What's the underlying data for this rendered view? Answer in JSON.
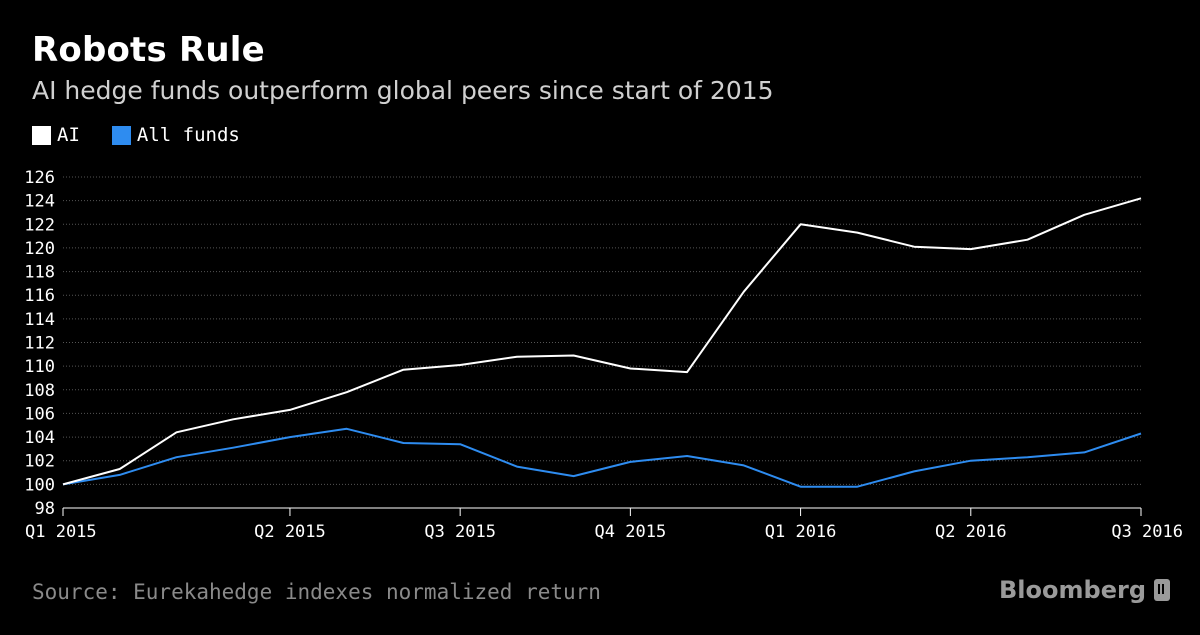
{
  "header": {
    "title": "Robots Rule",
    "subtitle": "AI hedge funds outperform global peers since start of 2015"
  },
  "footer": {
    "source": "Source: Eurekahedge indexes normalized return",
    "brand": "Bloomberg"
  },
  "chart_data": {
    "type": "line",
    "title": "Robots Rule",
    "subtitle": "AI hedge funds outperform global peers since start of 2015",
    "xlabel": "",
    "ylabel": "",
    "ylim": [
      98,
      126
    ],
    "yticks": [
      98,
      100,
      102,
      104,
      106,
      108,
      110,
      112,
      114,
      116,
      118,
      120,
      122,
      124,
      126
    ],
    "grid": true,
    "legend_position": "top-left",
    "x_tick_labels": [
      "Q1 2015",
      "Q2 2015",
      "Q3 2015",
      "Q4 2015",
      "Q1 2016",
      "Q2 2016",
      "Q3 2016"
    ],
    "x_tick_index": [
      0,
      4,
      7,
      10,
      13,
      16,
      19
    ],
    "x": [
      "2015-01",
      "2015-02",
      "2015-03",
      "2015-04",
      "2015-05",
      "2015-06",
      "2015-07",
      "2015-08",
      "2015-09",
      "2015-10",
      "2015-11",
      "2015-12",
      "2016-01",
      "2016-02",
      "2016-03",
      "2016-04",
      "2016-05",
      "2016-06",
      "2016-07",
      "2016-08"
    ],
    "series": [
      {
        "name": "AI",
        "color": "#ffffff",
        "values": [
          100.0,
          101.3,
          104.4,
          105.5,
          106.3,
          107.8,
          109.7,
          110.1,
          110.8,
          110.9,
          109.8,
          109.5,
          116.3,
          122.0,
          121.3,
          120.1,
          119.9,
          120.7,
          122.8,
          124.2
        ]
      },
      {
        "name": "All funds",
        "color": "#2e8cf0",
        "values": [
          100.0,
          100.8,
          102.3,
          103.1,
          104.0,
          104.7,
          103.5,
          103.4,
          101.5,
          100.7,
          101.9,
          102.4,
          101.6,
          99.8,
          99.8,
          101.1,
          102.0,
          102.3,
          102.7,
          104.3
        ]
      }
    ]
  }
}
